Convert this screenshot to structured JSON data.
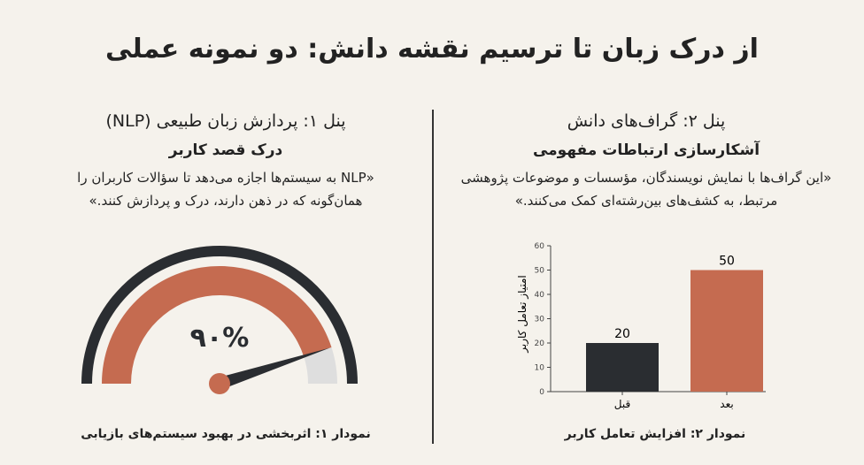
{
  "title": "از درک زبان تا ترسیم نقشه دانش: دو نمونه عملی",
  "left": {
    "panel": "پنل ۱: پردازش زبان طبیعی (NLP)",
    "heading": "درک قصد کاربر",
    "quote": "«NLP به سیستم‌ها اجازه می‌دهد تا سؤالات کاربران را همان‌گونه که در ذهن دارند، درک و پردازش کنند.»",
    "gauge_label": "۹۰%",
    "gauge_value": 90,
    "caption": "نمودار ۱: اثربخشی در بهبود سیستم‌های بازیابی"
  },
  "right": {
    "panel": "پنل ۲: گراف‌های دانش",
    "heading": "آشکارسازی ارتباطات مفهومی",
    "quote": "«این گراف‌ها با نمایش نویسندگان، مؤسسات و موضوعات پژوهشی مرتبط، به کشف‌های بین‌رشته‌ای کمک می‌کنند.»",
    "caption": "نمودار ۲: افزایش تعامل کاربر"
  },
  "colors": {
    "accent": "#c56b50",
    "dark": "#2a2d31",
    "gray": "#dedede"
  },
  "chart_data": {
    "type": "bar",
    "categories": [
      "قبل",
      "بعد"
    ],
    "values": [
      20,
      50
    ],
    "data_labels": [
      "20",
      "50"
    ],
    "ylabel": "امتیاز تعامل کاربر",
    "ylim": [
      0,
      60
    ],
    "yticks": [
      "0",
      "10",
      "20",
      "30",
      "40",
      "50",
      "60"
    ],
    "grid": false,
    "colors": [
      "#2a2d31",
      "#c56b50"
    ]
  }
}
